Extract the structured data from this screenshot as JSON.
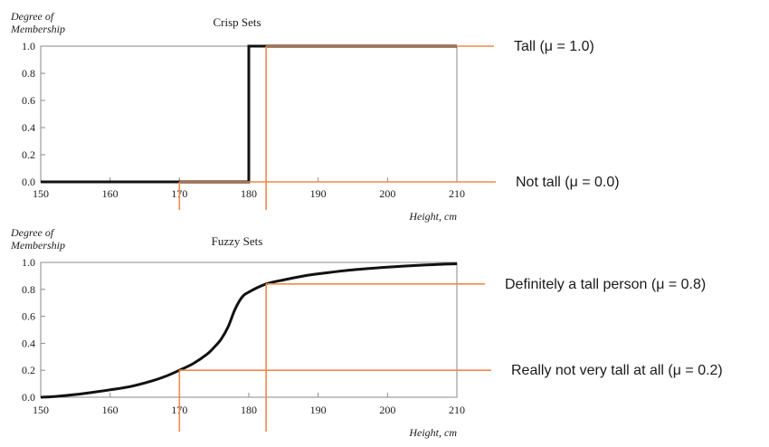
{
  "colors": {
    "curve": "#111111",
    "axis": "#8a8a8a",
    "annotation": "#ef8a4c",
    "text": "#1a1a1a"
  },
  "chart_data": [
    {
      "type": "line",
      "title": "Crisp Sets",
      "ylabel": "Degree of Membership",
      "xlabel": "",
      "xlim": [
        150,
        210
      ],
      "ylim": [
        0,
        1
      ],
      "xticks": [
        150,
        160,
        170,
        180,
        190,
        200,
        210
      ],
      "yticks": [
        "0.0",
        "0.2",
        "0.4",
        "0.6",
        "0.8",
        "1.0"
      ],
      "grid": false,
      "series": [
        {
          "x": [
            150,
            180,
            180,
            210
          ],
          "y": [
            0,
            0,
            1,
            1
          ]
        }
      ],
      "annotations": [
        {
          "text": "Tall (μ = 1.0)",
          "x": 182.5,
          "y": 1.0
        },
        {
          "text": "Not tall (μ = 0.0)",
          "x": 170,
          "y": 0.0
        }
      ]
    },
    {
      "type": "line",
      "title": "Fuzzy Sets",
      "ylabel": "Degree of Membership",
      "xlabel": "Height, cm",
      "xlim": [
        150,
        210
      ],
      "ylim": [
        0,
        1
      ],
      "xticks": [
        150,
        160,
        170,
        180,
        190,
        200,
        210
      ],
      "yticks": [
        "0.0",
        "0.2",
        "0.4",
        "0.6",
        "0.8",
        "1.0"
      ],
      "grid": false,
      "series": [
        {
          "x": [
            150,
            152,
            155,
            158,
            160,
            163,
            166,
            168,
            170,
            172,
            174,
            175,
            176,
            177,
            178,
            179,
            180,
            182.5,
            185,
            188,
            190,
            195,
            200,
            205,
            210
          ],
          "y": [
            0.0,
            0.005,
            0.02,
            0.04,
            0.055,
            0.08,
            0.12,
            0.155,
            0.2,
            0.25,
            0.32,
            0.37,
            0.43,
            0.52,
            0.65,
            0.74,
            0.78,
            0.84,
            0.87,
            0.9,
            0.915,
            0.945,
            0.965,
            0.98,
            0.99
          ]
        }
      ],
      "annotations": [
        {
          "text": "Definitely a tall person (μ = 0.8)",
          "x": 182.5,
          "y": 0.84
        },
        {
          "text": "Really not very tall at all (μ = 0.2)",
          "x": 170,
          "y": 0.2
        }
      ]
    }
  ]
}
